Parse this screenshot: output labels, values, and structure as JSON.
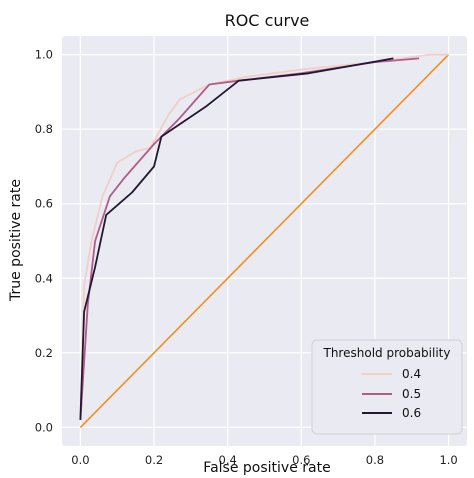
{
  "chart_data": {
    "type": "line",
    "title": "ROC curve",
    "xlabel": "False positive rate",
    "ylabel": "True positive rate",
    "xlim": [
      -0.05,
      1.05
    ],
    "ylim": [
      -0.05,
      1.05
    ],
    "xticks": [
      "0.0",
      "0.2",
      "0.4",
      "0.6",
      "0.8",
      "1.0"
    ],
    "yticks": [
      "0.0",
      "0.2",
      "0.4",
      "0.6",
      "0.8",
      "1.0"
    ],
    "grid": true,
    "background": "#eaeaf2",
    "legend": {
      "title": "Threshold probability",
      "placement": "lower-right"
    },
    "series": [
      {
        "name": "0.4",
        "color": "#f2cfc4",
        "points": [
          [
            0.0,
            0.03
          ],
          [
            0.01,
            0.38
          ],
          [
            0.03,
            0.5
          ],
          [
            0.06,
            0.62
          ],
          [
            0.1,
            0.71
          ],
          [
            0.15,
            0.74
          ],
          [
            0.19,
            0.75
          ],
          [
            0.24,
            0.84
          ],
          [
            0.27,
            0.88
          ],
          [
            0.35,
            0.92
          ],
          [
            0.45,
            0.94
          ],
          [
            0.6,
            0.96
          ],
          [
            0.8,
            0.98
          ],
          [
            0.95,
            1.0
          ],
          [
            1.0,
            1.0
          ]
        ]
      },
      {
        "name": "0.5",
        "color": "#b05d8a",
        "points": [
          [
            0.0,
            0.02
          ],
          [
            0.02,
            0.33
          ],
          [
            0.04,
            0.5
          ],
          [
            0.08,
            0.62
          ],
          [
            0.12,
            0.67
          ],
          [
            0.2,
            0.76
          ],
          [
            0.27,
            0.83
          ],
          [
            0.35,
            0.92
          ],
          [
            0.43,
            0.93
          ],
          [
            0.6,
            0.95
          ],
          [
            0.8,
            0.98
          ],
          [
            0.92,
            0.99
          ]
        ]
      },
      {
        "name": "0.6",
        "color": "#241730",
        "points": [
          [
            0.0,
            0.02
          ],
          [
            0.01,
            0.31
          ],
          [
            0.04,
            0.43
          ],
          [
            0.07,
            0.57
          ],
          [
            0.14,
            0.63
          ],
          [
            0.2,
            0.7
          ],
          [
            0.22,
            0.78
          ],
          [
            0.34,
            0.86
          ],
          [
            0.43,
            0.93
          ],
          [
            0.62,
            0.95
          ],
          [
            0.85,
            0.99
          ]
        ]
      },
      {
        "color": "#f28e1c",
        "points": [
          [
            0.0,
            0.0
          ],
          [
            1.0,
            1.0
          ]
        ]
      }
    ]
  }
}
